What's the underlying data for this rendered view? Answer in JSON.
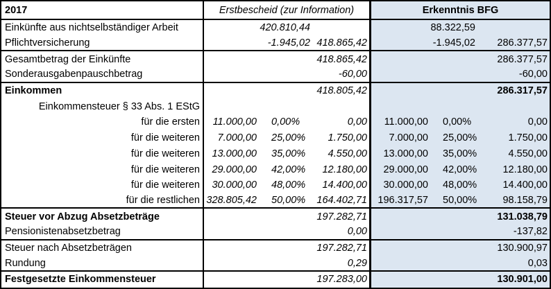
{
  "table": {
    "colors": {
      "highlight_fill": "#DCE6F1",
      "border": "#000000"
    },
    "header": {
      "year": "2017",
      "erstbescheid": "Erstbescheid (zur Information)",
      "erkenntnis": "Erkenntnis BFG"
    },
    "rows": [
      {
        "label": "Einkünfte aus nichtselbständiger Arbeit",
        "e1": "",
        "e2": "420.810,44",
        "e3": "",
        "b1": "",
        "b2": "288.322,59",
        "b3": ""
      },
      {
        "label": "Pflichtversicherung",
        "e1": "",
        "e2": "-1.945,02",
        "e3": "418.865,42",
        "b1": "",
        "b2": "-1.945,02",
        "b3": "286.377,57"
      },
      {
        "label": "Gesamtbetrag der Einkünfte",
        "e1": "",
        "e2": "",
        "e3": "418.865,42",
        "b1": "",
        "b2": "",
        "b3": "286.377,57"
      },
      {
        "label": "Sonderausgabenpauschbetrag",
        "e1": "",
        "e2": "",
        "e3": "-60,00",
        "b1": "",
        "b2": "",
        "b3": "-60,00"
      },
      {
        "label": "Einkommen",
        "e1": "",
        "e2": "",
        "e3": "418.805,42",
        "b1": "",
        "b2": "",
        "b3": "286.317,57"
      },
      {
        "label": "Einkommensteuer § 33 Abs. 1 EStG",
        "e1": "",
        "e2": "",
        "e3": "",
        "b1": "",
        "b2": "",
        "b3": ""
      },
      {
        "label": "für die ersten",
        "e1": "11.000,00",
        "e2": "0,00%",
        "e3": "0,00",
        "b1": "11.000,00",
        "b2": "0,00%",
        "b3": "0,00"
      },
      {
        "label": "für die weiteren",
        "e1": "7.000,00",
        "e2": "25,00%",
        "e3": "1.750,00",
        "b1": "7.000,00",
        "b2": "25,00%",
        "b3": "1.750,00"
      },
      {
        "label": "für die weiteren",
        "e1": "13.000,00",
        "e2": "35,00%",
        "e3": "4.550,00",
        "b1": "13.000,00",
        "b2": "35,00%",
        "b3": "4.550,00"
      },
      {
        "label": "für die weiteren",
        "e1": "29.000,00",
        "e2": "42,00%",
        "e3": "12.180,00",
        "b1": "29.000,00",
        "b2": "42,00%",
        "b3": "12.180,00"
      },
      {
        "label": "für die weiteren",
        "e1": "30.000,00",
        "e2": "48,00%",
        "e3": "14.400,00",
        "b1": "30.000,00",
        "b2": "48,00%",
        "b3": "14.400,00"
      },
      {
        "label": "für die restlichen",
        "e1": "328.805,42",
        "e2": "50,00%",
        "e3": "164.402,71",
        "b1": "196.317,57",
        "b2": "50,00%",
        "b3": "98.158,79"
      },
      {
        "label": "Steuer vor Abzug Absetzbeträge",
        "e1": "",
        "e2": "",
        "e3": "197.282,71",
        "b1": "",
        "b2": "",
        "b3": "131.038,79"
      },
      {
        "label": "Pensionistenabsetzbetrag",
        "e1": "",
        "e2": "",
        "e3": "0,00",
        "b1": "",
        "b2": "",
        "b3": "-137,82"
      },
      {
        "label": "Steuer nach Absetzbeträgen",
        "e1": "",
        "e2": "",
        "e3": "197.282,71",
        "b1": "",
        "b2": "",
        "b3": "130.900,97"
      },
      {
        "label": "Rundung",
        "e1": "",
        "e2": "",
        "e3": "0,29",
        "b1": "",
        "b2": "",
        "b3": "0,03"
      },
      {
        "label": "Festgesetzte Einkommensteuer",
        "e1": "",
        "e2": "",
        "e3": "197.283,00",
        "b1": "",
        "b2": "",
        "b3": "130.901,00"
      }
    ]
  }
}
